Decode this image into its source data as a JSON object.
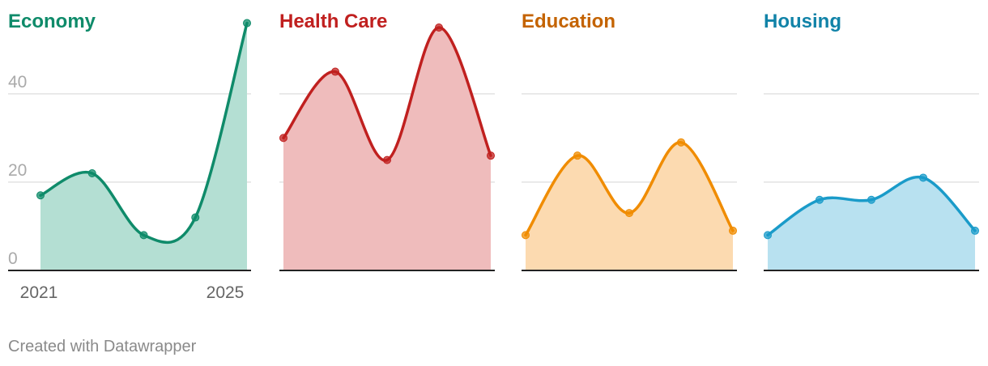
{
  "chart_data": {
    "type": "area",
    "x_range": [
      2021,
      2025
    ],
    "x_tick_labels": [
      "2021",
      "2025"
    ],
    "y_range": [
      0,
      55
    ],
    "y_ticks": [
      0,
      20,
      40
    ],
    "y_tick_labels": [
      "0",
      "20",
      "40"
    ],
    "grid": true,
    "panels": [
      {
        "title": "Economy",
        "color": "#0f8b6a",
        "fill": "#b4dfd3",
        "x": [
          2021,
          2022,
          2023,
          2024,
          2025
        ],
        "values": [
          17,
          22,
          8,
          12,
          56
        ]
      },
      {
        "title": "Health Care",
        "color": "#c0201f",
        "fill": "#efbcbc",
        "x": [
          2021,
          2022,
          2023,
          2024,
          2025
        ],
        "values": [
          30,
          45,
          25,
          55,
          26
        ]
      },
      {
        "title": "Education",
        "color": "#f08c00",
        "fill": "#fcdab0",
        "x": [
          2021,
          2022,
          2023,
          2024,
          2025
        ],
        "values": [
          8,
          26,
          13,
          29,
          9
        ]
      },
      {
        "title": "Housing",
        "color": "#1a9bc9",
        "fill": "#b8e1f0",
        "x": [
          2021,
          2022,
          2023,
          2024,
          2025
        ],
        "values": [
          8,
          16,
          16,
          21,
          9
        ]
      }
    ],
    "title_colors": [
      "#0f8b6a",
      "#c0201f",
      "#c46300",
      "#1183a8"
    ]
  },
  "footer": "Created with Datawrapper"
}
